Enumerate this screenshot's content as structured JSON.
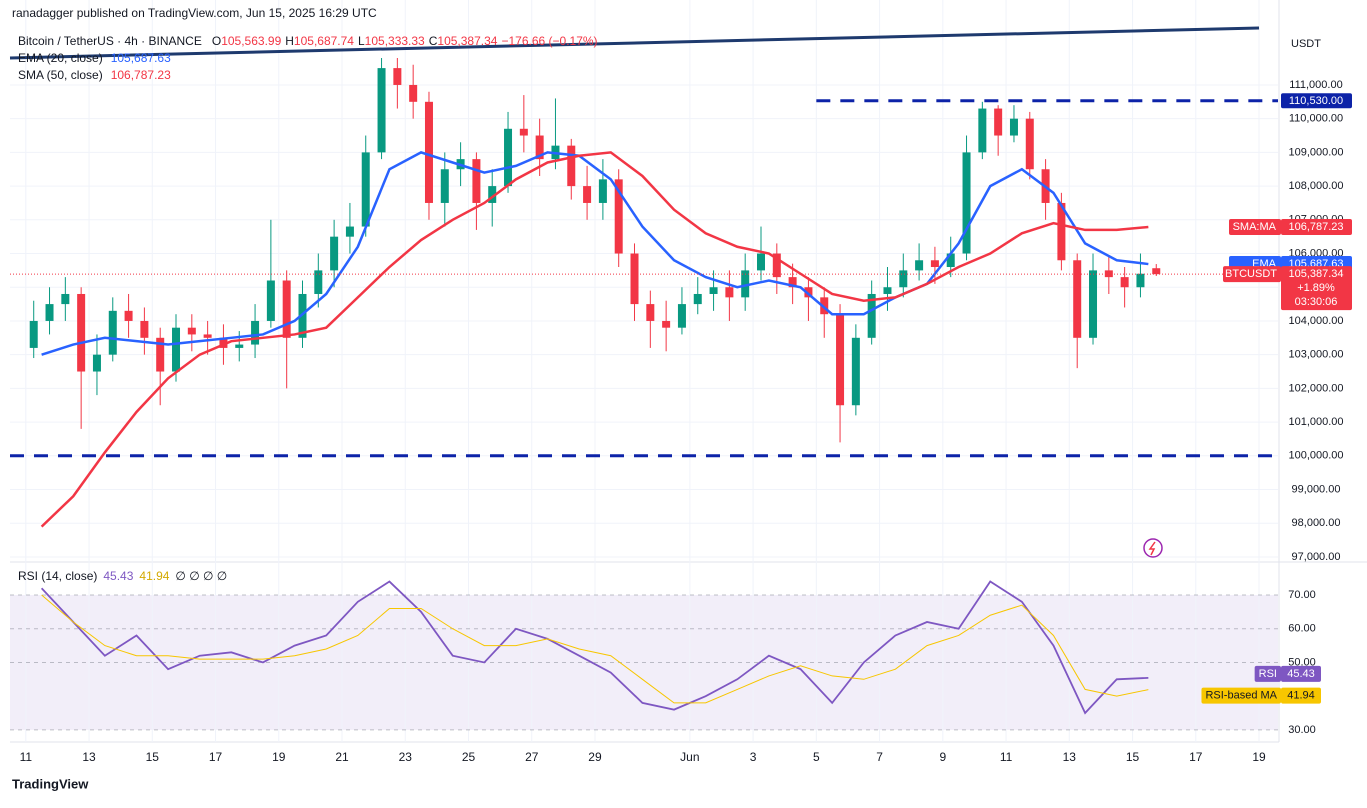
{
  "header": {
    "publisher": "ranadagger published on TradingView.com, Jun 15, 2025 16:29 UTC"
  },
  "footer": {
    "brand": "TradingView"
  },
  "chart_data": [
    {
      "type": "candlestick",
      "title": "Bitcoin / TetherUS · 4h · BINANCE",
      "ohlc_legend": [
        {
          "key": "O",
          "value": "105,563.99"
        },
        {
          "key": "H",
          "value": "105,687.74"
        },
        {
          "key": "L",
          "value": "105,333.33"
        },
        {
          "key": "C",
          "value": "105,387.34"
        }
      ],
      "change_label": "−176.66 (−0.17%)",
      "currency": "USDT",
      "up_color": "#089981",
      "down_color": "#f23645",
      "open": [
        103200,
        104000,
        104500,
        104800,
        102500,
        103000,
        104300,
        104000,
        103500,
        102500,
        103800,
        103600,
        103500,
        103200,
        103300,
        104000,
        105200,
        103500,
        104800,
        105500,
        106500,
        106800,
        109000,
        111500,
        111000,
        110500,
        107500,
        108500,
        108800,
        107500,
        108000,
        109700,
        109500,
        108800,
        109200,
        108000,
        107500,
        108200,
        106000,
        104500,
        104000,
        103800,
        104500,
        104800,
        105000,
        104700,
        105500,
        106000,
        105300,
        105000,
        104700,
        104200,
        101500,
        103500,
        104800,
        105000,
        105500,
        105800,
        105600,
        106000,
        109000,
        110300,
        109500,
        110000,
        108500,
        107500,
        105800,
        103500,
        105500,
        105300,
        105000,
        105563.99
      ],
      "high": [
        104600,
        105000,
        105300,
        105000,
        103600,
        104700,
        104800,
        104400,
        103800,
        104200,
        104200,
        104000,
        103900,
        103700,
        104500,
        107000,
        105500,
        105200,
        106000,
        107000,
        107500,
        109500,
        111800,
        111800,
        111600,
        110800,
        109000,
        109300,
        109000,
        108500,
        110200,
        110700,
        110000,
        110600,
        109400,
        108600,
        108800,
        108500,
        106300,
        104900,
        104600,
        105000,
        105300,
        105500,
        105500,
        106000,
        106800,
        106300,
        105700,
        105300,
        105000,
        104500,
        103900,
        105200,
        105600,
        106000,
        106300,
        106200,
        106500,
        109500,
        110500,
        110400,
        110400,
        110200,
        108800,
        107800,
        106000,
        106000,
        105900,
        105600,
        106000,
        105687.74
      ],
      "low": [
        102900,
        103600,
        104000,
        100800,
        101800,
        102800,
        103500,
        103000,
        101500,
        102200,
        103100,
        103000,
        102700,
        102800,
        102900,
        103800,
        102000,
        103200,
        104400,
        105000,
        106000,
        106500,
        108800,
        110300,
        110000,
        107000,
        106800,
        108000,
        106700,
        106800,
        107800,
        109000,
        108300,
        108500,
        107600,
        107000,
        107000,
        105600,
        104000,
        103200,
        103100,
        103600,
        104200,
        104300,
        104000,
        104300,
        105200,
        104800,
        104500,
        104000,
        103500,
        100400,
        101200,
        103300,
        104300,
        104700,
        105200,
        105100,
        105300,
        105800,
        108800,
        108900,
        109300,
        108200,
        107000,
        105500,
        102600,
        103300,
        104800,
        104400,
        104700,
        105333.33
      ],
      "close": [
        104000,
        104500,
        104800,
        102500,
        103000,
        104300,
        104000,
        103500,
        102500,
        103800,
        103600,
        103500,
        103200,
        103300,
        104000,
        105200,
        103500,
        104800,
        105500,
        106500,
        106800,
        109000,
        111500,
        111000,
        110500,
        107500,
        108500,
        108800,
        107500,
        108000,
        109700,
        109500,
        108800,
        109200,
        108000,
        107500,
        108200,
        106000,
        104500,
        104000,
        103800,
        104500,
        104800,
        105000,
        104700,
        105500,
        106000,
        105300,
        105000,
        104700,
        104200,
        101500,
        103500,
        104800,
        105000,
        105500,
        105800,
        105600,
        106000,
        109000,
        110300,
        109500,
        110000,
        108500,
        107500,
        105800,
        103500,
        105500,
        105300,
        105000,
        105400,
        105387.34
      ],
      "ylim": [
        96850,
        113520
      ],
      "yticks": [
        {
          "value": 97000,
          "label": "97,000.00"
        },
        {
          "value": 98000,
          "label": "98,000.00"
        },
        {
          "value": 99000,
          "label": "99,000.00"
        },
        {
          "value": 100000,
          "label": "100,000.00"
        },
        {
          "value": 101000,
          "label": "101,000.00"
        },
        {
          "value": 102000,
          "label": "102,000.00"
        },
        {
          "value": 103000,
          "label": "103,000.00"
        },
        {
          "value": 104000,
          "label": "104,000.00"
        },
        {
          "value": 105000,
          "label": "105,000.00"
        },
        {
          "value": 106000,
          "label": "106,000.00"
        },
        {
          "value": 107000,
          "label": "107,000.00"
        },
        {
          "value": 108000,
          "label": "108,000.00"
        },
        {
          "value": 109000,
          "label": "109,000.00"
        },
        {
          "value": 110000,
          "label": "110,000.00"
        },
        {
          "value": 111000,
          "label": "111,000.00"
        }
      ],
      "xlim": [
        -0.5,
        39.6
      ],
      "xticks": [
        {
          "value": 0,
          "label": "11"
        },
        {
          "value": 2,
          "label": "13"
        },
        {
          "value": 4,
          "label": "15"
        },
        {
          "value": 6,
          "label": "17"
        },
        {
          "value": 8,
          "label": "19"
        },
        {
          "value": 10,
          "label": "21"
        },
        {
          "value": 12,
          "label": "23"
        },
        {
          "value": 14,
          "label": "25"
        },
        {
          "value": 16,
          "label": "27"
        },
        {
          "value": 18,
          "label": "29"
        },
        {
          "value": 21,
          "label": "Jun"
        },
        {
          "value": 23,
          "label": "3"
        },
        {
          "value": 25,
          "label": "5"
        },
        {
          "value": 27,
          "label": "7"
        },
        {
          "value": 29,
          "label": "9"
        },
        {
          "value": 31,
          "label": "11"
        },
        {
          "value": 33,
          "label": "13"
        },
        {
          "value": 35,
          "label": "15"
        },
        {
          "value": 37,
          "label": "17"
        },
        {
          "value": 39,
          "label": "19"
        }
      ],
      "series": [
        {
          "name": "EMA (20, close)",
          "tag": "EMA",
          "color": "#2962ff",
          "last_label": "105,687.63",
          "values": [
            103000,
            103300,
            103500,
            103400,
            103300,
            103400,
            103500,
            103600,
            104000,
            104800,
            106200,
            108500,
            109000,
            108700,
            108400,
            108600,
            109000,
            108900,
            108200,
            106800,
            105800,
            105300,
            105000,
            105200,
            105000,
            104200,
            104200,
            104700,
            105100,
            106300,
            108000,
            108500,
            107800,
            106300,
            105800,
            105687.63
          ]
        },
        {
          "name": "SMA (50, close)",
          "tag": "SMA:MA",
          "color": "#f23645",
          "last_label": "106,787.23",
          "values": [
            97900,
            98800,
            100100,
            101300,
            102300,
            103000,
            103400,
            103500,
            103600,
            103800,
            104700,
            105600,
            106400,
            107000,
            107500,
            108200,
            108700,
            108900,
            109000,
            108300,
            107300,
            106600,
            106200,
            106000,
            105400,
            104800,
            104600,
            104700,
            105100,
            105600,
            106000,
            106600,
            106900,
            106700,
            106700,
            106787.23
          ]
        }
      ],
      "levels": [
        {
          "value": 110530,
          "label": "110,530.00",
          "x_start": 25
        },
        {
          "value": 100000,
          "label": "100,000.00"
        }
      ],
      "trendline": {
        "x": [
          -0.5,
          39
        ],
        "values": [
          111800,
          112690
        ]
      },
      "price_tag": {
        "name": "BTCUSDT",
        "value": 105387.34,
        "label": "105,387.34",
        "change": "+1.89%",
        "countdown": "03:30:06"
      }
    },
    {
      "type": "line",
      "title": "RSI (14, close)",
      "placeholders": "∅ ∅ ∅ ∅",
      "ylim": [
        26.4,
        79.5
      ],
      "band": [
        30,
        70
      ],
      "yticks": [
        {
          "value": 30,
          "label": "30.00"
        },
        {
          "value": 50,
          "label": "50.00"
        },
        {
          "value": 60,
          "label": "60.00"
        },
        {
          "value": 70,
          "label": "70.00"
        }
      ],
      "series": [
        {
          "name": "RSI",
          "color": "#7e57c2",
          "last_label": "45.43",
          "values": [
            72,
            62,
            52,
            58,
            48,
            52,
            53,
            50,
            55,
            58,
            68,
            74,
            65,
            52,
            50,
            60,
            57,
            52,
            47,
            38,
            36,
            40,
            45,
            52,
            48,
            38,
            50,
            58,
            62,
            60,
            74,
            68,
            55,
            35,
            45,
            45.43
          ]
        },
        {
          "name": "RSI-based MA",
          "color": "#f7c600",
          "last_label": "41.94",
          "values": [
            70,
            62,
            55,
            52,
            52,
            51,
            51,
            51,
            52,
            54,
            58,
            66,
            66,
            60,
            55,
            55,
            57,
            54,
            52,
            45,
            38,
            38,
            42,
            46,
            49,
            46,
            45,
            48,
            55,
            58,
            64,
            67,
            58,
            42,
            40,
            41.94
          ]
        }
      ]
    }
  ]
}
